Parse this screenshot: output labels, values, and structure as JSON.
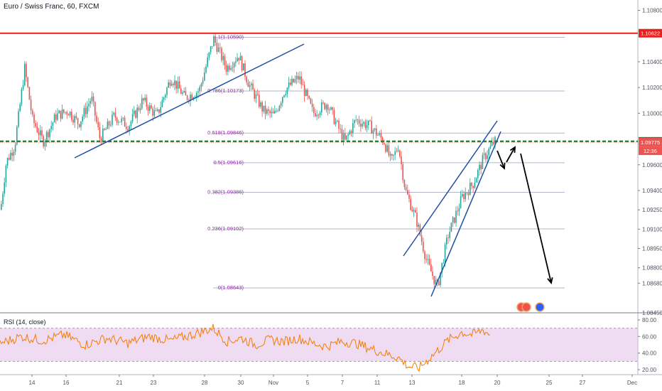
{
  "title": "Euro / Swiss Franc, 60, FXCM",
  "rsi_label": "RSI (14, close)",
  "colors": {
    "up": "#26a69a",
    "down": "#ef5350",
    "resistance": "#e91e1e",
    "support": "#2e7d32",
    "trend": "#1f4fa3",
    "fib": "#9c27b0",
    "rsi": "#f57c00",
    "rsi_band": "#e1bee7"
  },
  "chart_data": [
    {
      "type": "candlestick",
      "title": "Euro / Swiss Franc, 60, FXCM",
      "ylim": [
        1.0845,
        1.1088
      ],
      "y_ticks": [
        "1.10800",
        "1.10622",
        "1.10400",
        "1.10200",
        "1.10000",
        "1.09782",
        "1.09775",
        "1.09600",
        "1.09400",
        "1.09250",
        "1.09100",
        "1.08950",
        "1.08800",
        "1.08680",
        "1.08450"
      ],
      "x_ticks": [
        "14",
        "16",
        "21",
        "23",
        "28",
        "30",
        "Nov",
        "5",
        "7",
        "11",
        "13",
        "18",
        "20",
        "25",
        "27",
        "Dec"
      ],
      "price_path": [
        [
          0,
          1.0925
        ],
        [
          8,
          1.0962
        ],
        [
          20,
          1.0975
        ],
        [
          34,
          1.1035
        ],
        [
          45,
          1.0995
        ],
        [
          60,
          1.0978
        ],
        [
          78,
          1.0998
        ],
        [
          95,
          1.1002
        ],
        [
          110,
          1.0992
        ],
        [
          128,
          1.1012
        ],
        [
          140,
          1.098
        ],
        [
          160,
          1.0998
        ],
        [
          180,
          1.099
        ],
        [
          200,
          1.101
        ],
        [
          220,
          1.0998
        ],
        [
          240,
          1.1028
        ],
        [
          260,
          1.1012
        ],
        [
          280,
          1.1018
        ],
        [
          300,
          1.1058
        ],
        [
          318,
          1.1035
        ],
        [
          335,
          1.1045
        ],
        [
          350,
          1.1022
        ],
        [
          370,
          1.1002
        ],
        [
          385,
          1.0998
        ],
        [
          400,
          1.1018
        ],
        [
          420,
          1.1028
        ],
        [
          440,
          1.1
        ],
        [
          460,
          1.1008
        ],
        [
          470,
          1.0995
        ],
        [
          485,
          1.0978
        ],
        [
          500,
          1.0995
        ],
        [
          520,
          1.099
        ],
        [
          540,
          1.0978
        ],
        [
          550,
          1.0962
        ],
        [
          560,
          1.0975
        ],
        [
          570,
          1.094
        ],
        [
          585,
          1.0918
        ],
        [
          600,
          1.0885
        ],
        [
          615,
          1.0865
        ],
        [
          630,
          1.0905
        ],
        [
          650,
          1.0935
        ],
        [
          665,
          1.0945
        ],
        [
          680,
          1.0965
        ],
        [
          695,
          1.0978
        ]
      ],
      "levels": {
        "resistance": {
          "value": 1.10622,
          "label": "1.10622"
        },
        "support": {
          "value": 1.09782,
          "label": "1.09782"
        },
        "last_price": {
          "value": 1.09775,
          "label": "1.09775"
        },
        "countdown": "12:36"
      },
      "fibonacci": [
        {
          "label": "1(1.10590)",
          "value": 1.1059
        },
        {
          "label": "0.786(1.10173)",
          "value": 1.10173
        },
        {
          "label": "0.618(1.09846)",
          "value": 1.09846
        },
        {
          "label": "0.5(1.09616)",
          "value": 1.09616
        },
        {
          "label": "0.382(1.09386)",
          "value": 1.09386
        },
        {
          "label": "0.236(1.09102)",
          "value": 1.09102
        },
        {
          "label": "0(1.08643)",
          "value": 1.08643
        }
      ]
    },
    {
      "type": "line",
      "title": "RSI (14, close)",
      "ylim": [
        14,
        86
      ],
      "y_ticks": [
        "80.00",
        "60.00",
        "40.00",
        "20.00"
      ],
      "bands": [
        30,
        70
      ],
      "path": [
        [
          0,
          52
        ],
        [
          30,
          60
        ],
        [
          60,
          55
        ],
        [
          90,
          62
        ],
        [
          120,
          50
        ],
        [
          150,
          58
        ],
        [
          180,
          52
        ],
        [
          210,
          60
        ],
        [
          240,
          55
        ],
        [
          270,
          62
        ],
        [
          300,
          70
        ],
        [
          320,
          54
        ],
        [
          340,
          58
        ],
        [
          360,
          50
        ],
        [
          380,
          56
        ],
        [
          400,
          54
        ],
        [
          420,
          58
        ],
        [
          440,
          52
        ],
        [
          460,
          48
        ],
        [
          480,
          54
        ],
        [
          500,
          52
        ],
        [
          520,
          46
        ],
        [
          540,
          40
        ],
        [
          560,
          35
        ],
        [
          575,
          24
        ],
        [
          590,
          22
        ],
        [
          600,
          30
        ],
        [
          615,
          42
        ],
        [
          630,
          55
        ],
        [
          650,
          65
        ],
        [
          665,
          62
        ],
        [
          680,
          68
        ],
        [
          690,
          62
        ]
      ]
    }
  ]
}
